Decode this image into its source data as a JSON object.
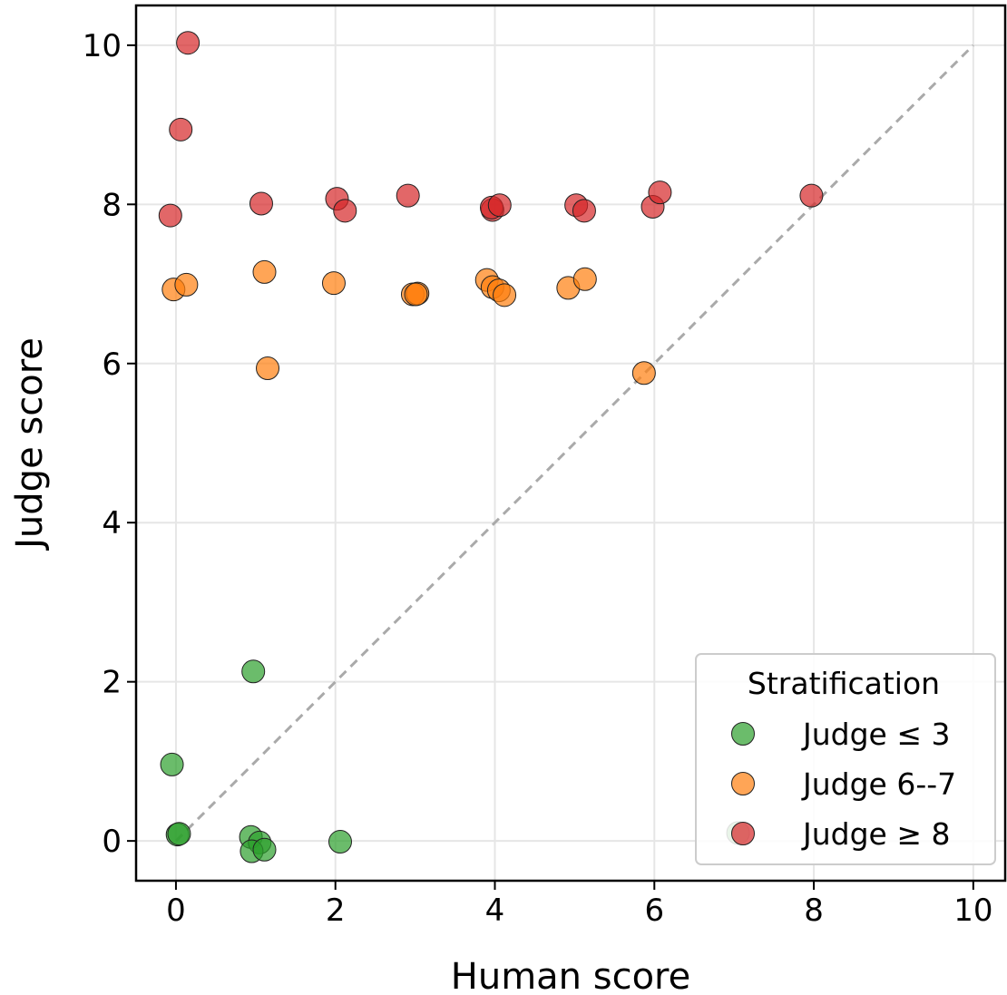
{
  "chart_data": {
    "type": "scatter",
    "xlabel": "Human score",
    "ylabel": "Judge score",
    "xlim": [
      -0.5,
      10.4
    ],
    "ylim": [
      -0.5,
      10.5
    ],
    "x_ticks": [
      0,
      2,
      4,
      6,
      8,
      10
    ],
    "y_ticks": [
      0,
      2,
      4,
      6,
      8,
      10
    ],
    "grid": true,
    "reference_line": {
      "from": [
        0,
        0
      ],
      "to": [
        10,
        10
      ],
      "style": "dashed",
      "color": "#aaaaaa"
    },
    "legend": {
      "title": "Stratification",
      "position": "lower-right"
    },
    "series": [
      {
        "name": "Judge ≤ 3",
        "color": "#2ca02c",
        "points": [
          [
            0.02,
            0.08
          ],
          [
            0.04,
            0.09
          ],
          [
            -0.05,
            0.96
          ],
          [
            0.97,
            2.13
          ],
          [
            0.94,
            0.05
          ],
          [
            1.05,
            -0.02
          ],
          [
            0.95,
            -0.13
          ],
          [
            1.11,
            -0.11
          ],
          [
            2.06,
            -0.01
          ],
          [
            7.05,
            0.1
          ]
        ]
      },
      {
        "name": "Judge 6--7",
        "color": "#ff7f0e",
        "points": [
          [
            -0.03,
            6.93
          ],
          [
            0.13,
            6.99
          ],
          [
            1.11,
            7.15
          ],
          [
            1.15,
            5.94
          ],
          [
            1.98,
            7.01
          ],
          [
            2.97,
            6.87
          ],
          [
            3.03,
            6.88
          ],
          [
            3.01,
            6.87
          ],
          [
            3.9,
            7.05
          ],
          [
            3.97,
            6.96
          ],
          [
            4.05,
            6.92
          ],
          [
            4.12,
            6.86
          ],
          [
            4.92,
            6.95
          ],
          [
            5.13,
            7.06
          ],
          [
            5.87,
            5.88
          ]
        ]
      },
      {
        "name": "Judge ≥ 8",
        "color": "#d62728",
        "points": [
          [
            0.15,
            10.03
          ],
          [
            0.06,
            8.94
          ],
          [
            -0.07,
            7.86
          ],
          [
            1.07,
            8.01
          ],
          [
            2.02,
            8.07
          ],
          [
            2.12,
            7.92
          ],
          [
            2.91,
            8.11
          ],
          [
            3.97,
            7.93
          ],
          [
            3.96,
            7.96
          ],
          [
            4.06,
            7.99
          ],
          [
            5.02,
            7.99
          ],
          [
            5.12,
            7.92
          ],
          [
            5.98,
            7.97
          ],
          [
            6.07,
            8.15
          ],
          [
            7.97,
            8.11
          ]
        ]
      }
    ]
  }
}
